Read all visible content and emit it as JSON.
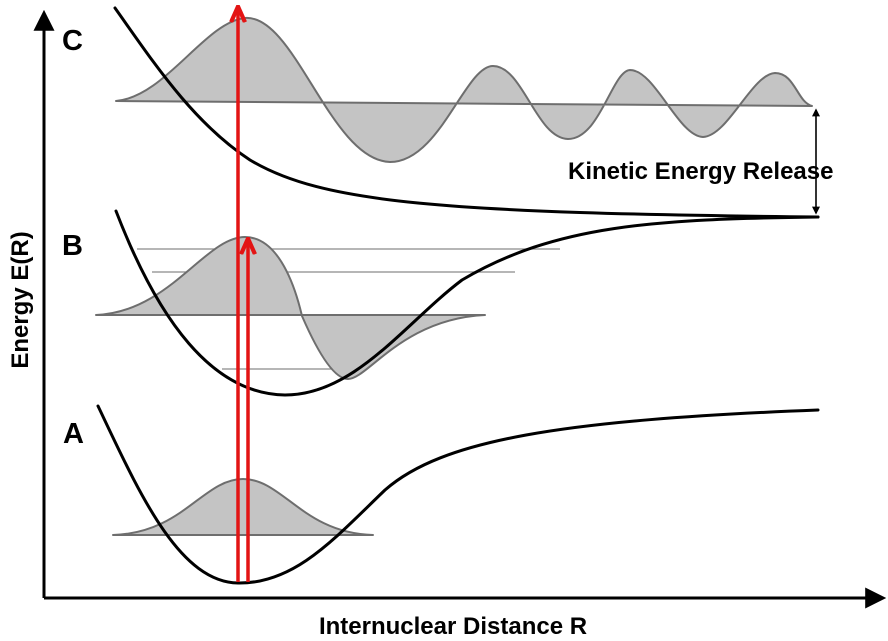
{
  "labels": {
    "state_a": "A",
    "state_b": "B",
    "state_c": "C",
    "kinetic_energy_release": "Kinetic Energy Release"
  },
  "axes": {
    "x_label": "Internuclear Distance R",
    "y_label": "Energy E(R)"
  },
  "colors": {
    "curve": "#000000",
    "wavepacket_fill": "#c4c4c4",
    "wavepacket_stroke": "#6e6e6e",
    "excitation_arrow": "#e31414"
  }
}
